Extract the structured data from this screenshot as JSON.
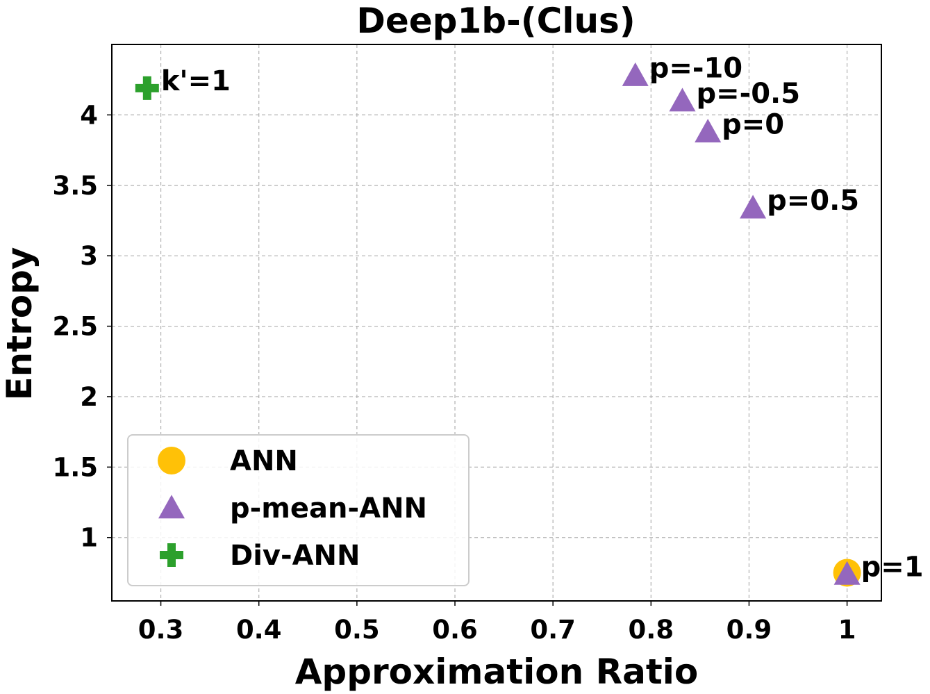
{
  "chart_data": {
    "type": "scatter",
    "title": "Deep1b-(Clus)",
    "xlabel": "Approximation Ratio",
    "ylabel": "Entropy",
    "xlim": [
      0.25,
      1.035
    ],
    "ylim": [
      0.55,
      4.5
    ],
    "xticks": [
      0.3,
      0.4,
      0.5,
      0.6,
      0.7,
      0.8,
      0.9,
      1.0
    ],
    "xtick_labels": [
      "0.3",
      "0.4",
      "0.5",
      "0.6",
      "0.7",
      "0.8",
      "0.9",
      "1"
    ],
    "yticks": [
      1.0,
      1.5,
      2.0,
      2.5,
      3.0,
      3.5,
      4.0
    ],
    "ytick_labels": [
      "1",
      "1.5",
      "2",
      "2.5",
      "3",
      "3.5",
      "4"
    ],
    "grid": true,
    "legend_position": "lower-left",
    "series": [
      {
        "name": "ANN",
        "marker": "circle",
        "color": "#FFC107",
        "points": [
          {
            "x": 1.0,
            "y": 0.75,
            "label": ""
          }
        ]
      },
      {
        "name": "p-mean-ANN",
        "marker": "triangle",
        "color": "#9467BD",
        "points": [
          {
            "x": 0.784,
            "y": 4.28,
            "label": "p=-10"
          },
          {
            "x": 0.832,
            "y": 4.1,
            "label": "p=-0.5"
          },
          {
            "x": 0.858,
            "y": 3.88,
            "label": "p=0"
          },
          {
            "x": 0.904,
            "y": 3.34,
            "label": "p=0.5"
          },
          {
            "x": 1.0,
            "y": 0.74,
            "label": "p=1"
          }
        ]
      },
      {
        "name": "Div-ANN",
        "marker": "plus",
        "color": "#2CA02C",
        "points": [
          {
            "x": 0.286,
            "y": 4.19,
            "label": "k'=1"
          }
        ]
      }
    ]
  }
}
